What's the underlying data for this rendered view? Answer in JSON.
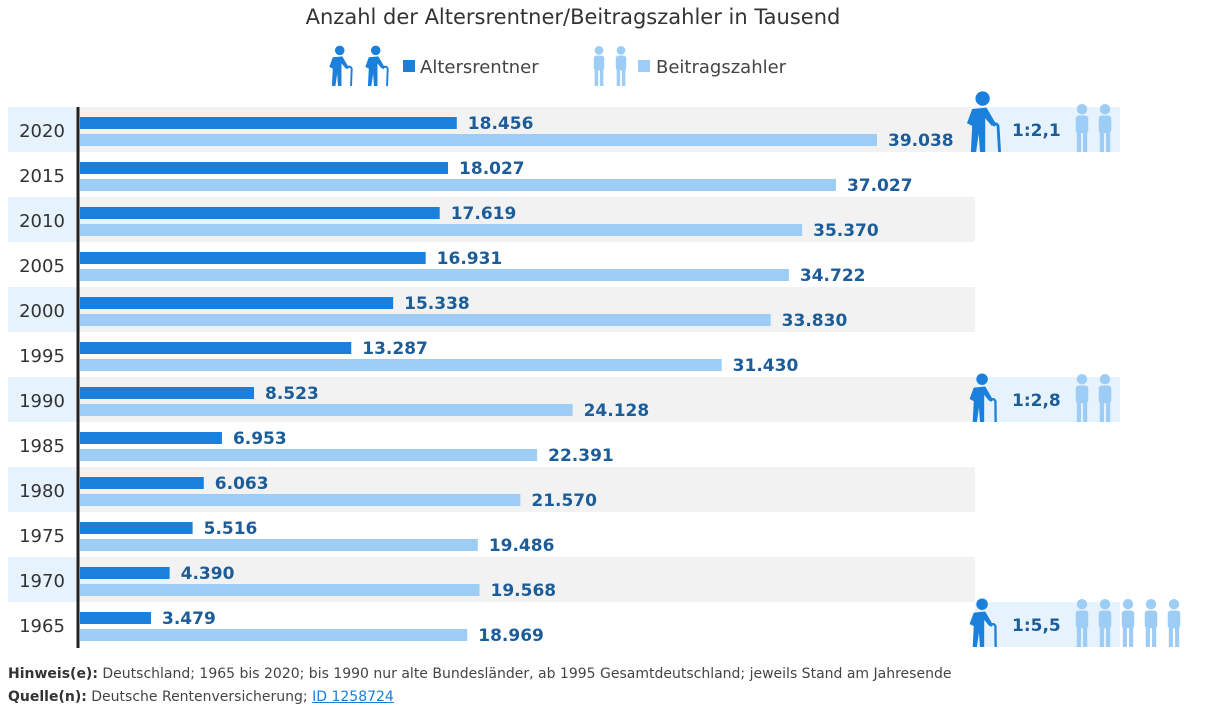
{
  "chart_data": {
    "type": "bar",
    "orientation": "horizontal",
    "title": "Anzahl der Altersrentner/Beitragszahler in Tausend",
    "categories": [
      "2020",
      "2015",
      "2010",
      "2005",
      "2000",
      "1995",
      "1990",
      "1985",
      "1980",
      "1975",
      "1970",
      "1965"
    ],
    "series": [
      {
        "name": "Altersrentner",
        "color": "#1a80dc",
        "values": [
          18456,
          18027,
          17619,
          16931,
          15338,
          13287,
          8523,
          6953,
          6063,
          5516,
          4390,
          3479
        ],
        "labels": [
          "18.456",
          "18.027",
          "17.619",
          "16.931",
          "15.338",
          "13.287",
          "8.523",
          "6.953",
          "6.063",
          "5.516",
          "4.390",
          "3.479"
        ]
      },
      {
        "name": "Beitragszahler",
        "color": "#9dcdf5",
        "values": [
          39038,
          37027,
          35370,
          34722,
          33830,
          31430,
          24128,
          22391,
          21570,
          19486,
          19568,
          18969
        ],
        "labels": [
          "39.038",
          "37.027",
          "35.370",
          "34.722",
          "33.830",
          "31.430",
          "24.128",
          "22.391",
          "21.570",
          "19.486",
          "19.568",
          "18.969"
        ]
      }
    ],
    "ratios": [
      {
        "year": "2020",
        "label": "1:2,1"
      },
      {
        "year": "1990",
        "label": "1:2,8"
      },
      {
        "year": "1965",
        "label": "1:5,5"
      }
    ],
    "grid": false,
    "legend": "top-center",
    "xlim": [
      0,
      40000
    ]
  },
  "footer": {
    "note_label": "Hinweis(e):",
    "note_text": "Deutschland; 1965 bis 2020; bis 1990 nur alte Bundesländer, ab 1995 Gesamtdeutschland; jeweils Stand am Jahresende",
    "source_label": "Quelle(n):",
    "source_text": "Deutsche Rentenversicherung;",
    "source_link": "ID 1258724"
  }
}
